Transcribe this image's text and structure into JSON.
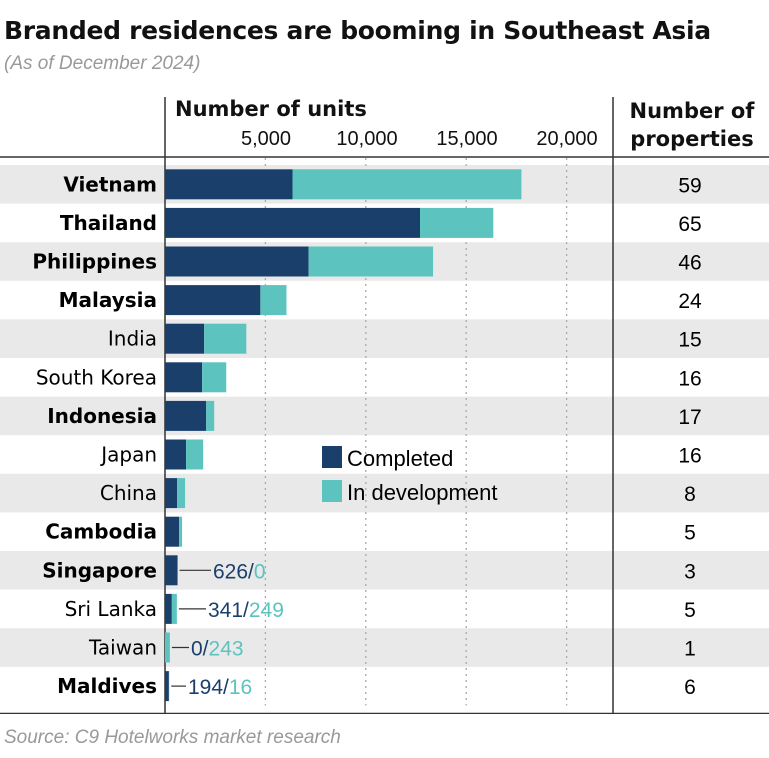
{
  "chart_data": {
    "type": "bar",
    "orientation": "horizontal",
    "stacked": true,
    "title": "Branded residences are booming in Southeast Asia",
    "subtitle": "(As of December 2024)",
    "xlabel": "Number of units",
    "right_column_label": "Number of properties",
    "xlim": [
      0,
      20000
    ],
    "xticks": [
      "5,000",
      "10,000",
      "15,000",
      "20,000"
    ],
    "grid": true,
    "legend_placement": "center",
    "source": "Source: C9 Hotelworks market research",
    "colors": {
      "Completed": "#1b3f6b",
      "In development": "#5cc3bf",
      "band": "#e9e9e9"
    },
    "categories": [
      "Vietnam",
      "Thailand",
      "Philippines",
      "Malaysia",
      "India",
      "South Korea",
      "Indonesia",
      "Japan",
      "China",
      "Cambodia",
      "Singapore",
      "Sri Lanka",
      "Taiwan",
      "Maldives"
    ],
    "emphasized": [
      true,
      true,
      true,
      true,
      false,
      false,
      true,
      false,
      false,
      true,
      true,
      false,
      false,
      true
    ],
    "series": [
      {
        "name": "Completed",
        "values": [
          6350,
          12700,
          7150,
          4750,
          1950,
          1850,
          2050,
          1050,
          600,
          700,
          626,
          341,
          0,
          194
        ]
      },
      {
        "name": "In development",
        "values": [
          11400,
          3650,
          6200,
          1300,
          2100,
          1200,
          400,
          850,
          400,
          150,
          0,
          249,
          243,
          16
        ]
      }
    ],
    "number_of_properties": [
      59,
      65,
      46,
      24,
      15,
      16,
      17,
      16,
      8,
      5,
      3,
      5,
      1,
      6
    ],
    "annotations": [
      {
        "category": "Singapore",
        "completed": "626",
        "development": "0"
      },
      {
        "category": "Sri Lanka",
        "completed": "341",
        "development": "249"
      },
      {
        "category": "Taiwan",
        "completed": "0",
        "development": "243"
      },
      {
        "category": "Maldives",
        "completed": "194",
        "development": "16"
      }
    ]
  }
}
